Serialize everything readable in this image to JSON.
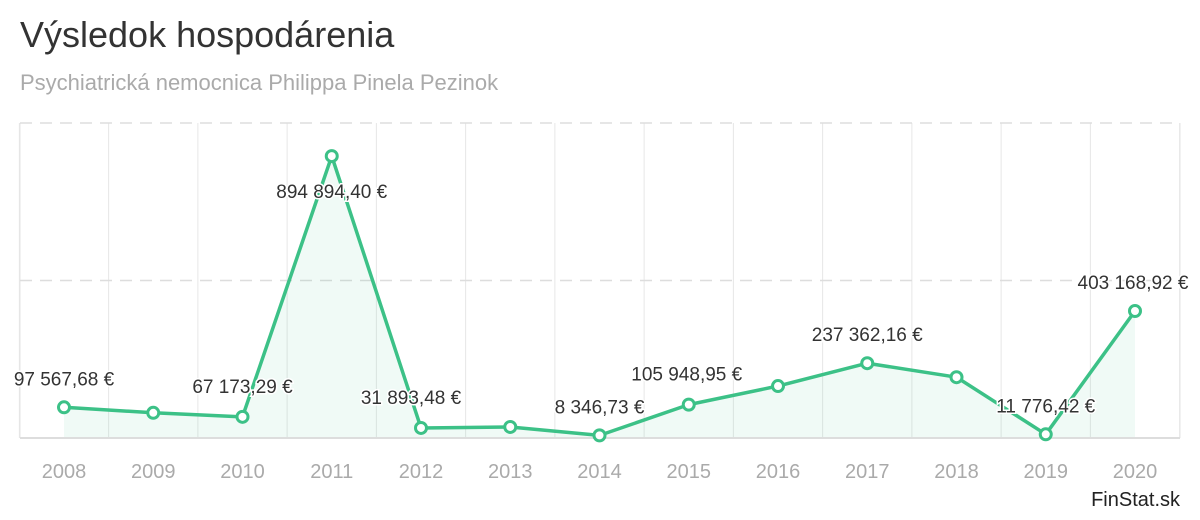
{
  "chart_data": {
    "type": "line",
    "title": "Výsledok hospodárenia",
    "subtitle": "Psychiatrická nemocnica Philippa Pinela Pezinok",
    "credit": "FinStat.sk",
    "categories": [
      "2008",
      "2009",
      "2010",
      "2011",
      "2012",
      "2013",
      "2014",
      "2015",
      "2016",
      "2017",
      "2018",
      "2019",
      "2020"
    ],
    "values": [
      97567.68,
      80000,
      67173.29,
      894894.4,
      31893.48,
      35000,
      8346.73,
      105948.95,
      165000,
      237362.16,
      193000,
      11776.42,
      403168.92
    ],
    "data_labels": [
      "97 567,68 €",
      null,
      "67 173,29 €",
      "894 894,40 €",
      "31 893,48 €",
      null,
      "8 346,73 €",
      "105 948,95 €",
      null,
      "237 362,16 €",
      null,
      "11 776,42 €",
      "403 168,92 €"
    ],
    "ylim": [
      0,
      1000000
    ],
    "yticks": [
      0,
      500000,
      1000000
    ],
    "grid": true,
    "color": "#3cc187"
  }
}
